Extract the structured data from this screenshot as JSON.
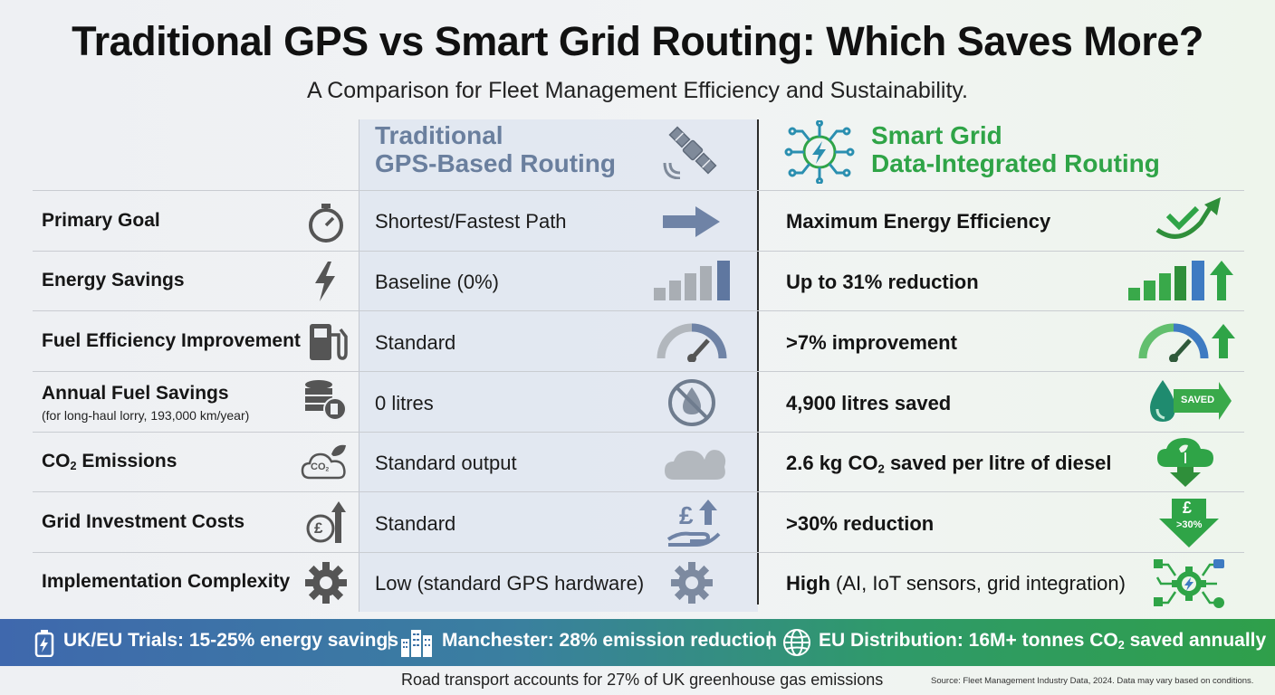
{
  "header": {
    "title": "Traditional GPS vs Smart Grid Routing: Which Saves More?",
    "subtitle": "A Comparison for Fleet Management Efficiency and Sustainability."
  },
  "columns": {
    "gps": {
      "line1": "Traditional",
      "line2": "GPS-Based Routing",
      "icon": "satellite-icon"
    },
    "smart": {
      "line1": "Smart Grid",
      "line2": "Data-Integrated Routing",
      "icon": "circuit-bolt-icon"
    }
  },
  "rows": [
    {
      "label": "Primary Goal",
      "sublabel": "",
      "gps": "Shortest/Fastest Path",
      "smart": "Maximum Energy Efficiency",
      "smart_suffix": ""
    },
    {
      "label": "Energy Savings",
      "sublabel": "",
      "gps": "Baseline (0%)",
      "smart": "Up to 31% reduction",
      "smart_suffix": ""
    },
    {
      "label": "Fuel Efficiency Improvement",
      "sublabel": "",
      "gps": "Standard",
      "smart": ">7% improvement",
      "smart_suffix": ""
    },
    {
      "label": "Annual Fuel Savings",
      "sublabel": "(for long-haul lorry, 193,000 km/year)",
      "gps": "0 litres",
      "smart": "4,900 litres saved",
      "smart_suffix": ""
    },
    {
      "label": "CO",
      "label_sub": "2",
      "label_rest": " Emissions",
      "sublabel": "",
      "gps": "Standard output",
      "smart": "2.6 kg CO",
      "smart_sub": "2",
      "smart_rest": " saved per litre of diesel",
      "smart_suffix": ""
    },
    {
      "label": "Grid Investment Costs",
      "sublabel": "",
      "gps": "Standard",
      "smart": ">30% reduction",
      "smart_suffix": ""
    },
    {
      "label": "Implementation Complexity",
      "sublabel": "",
      "gps": "Low (standard GPS hardware)",
      "smart": "High",
      "smart_suffix": " (AI, IoT sensors, grid integration)"
    }
  ],
  "icons": {
    "labels": [
      "stopwatch-icon",
      "lightning-icon",
      "fuel-pump-icon",
      "coins-fuel-icon",
      "co2-cloud-icon",
      "pound-up-icon",
      "gear-icon"
    ],
    "gps": [
      "arrow-right-icon",
      "bar-chart-icon",
      "gauge-icon",
      "no-drop-icon",
      "cloud-icon",
      "pound-hand-icon",
      "gear-icon"
    ],
    "smart": [
      "check-arrow-icon",
      "bar-chart-up-icon",
      "gauge-up-icon",
      "drop-saved-icon",
      "cloud-down-icon",
      "pound-down-icon",
      "gear-network-icon"
    ],
    "saved_badge": "SAVED",
    "pound_symbol": "£",
    "down_badge": ">30%",
    "co2_text": "CO",
    "co2_sub": "2"
  },
  "colors": {
    "gps": "#6a7f9e",
    "smart": "#2fa447",
    "gps_icon": "#8d97a5"
  },
  "banner": {
    "item1": "UK/EU Trials: 15-25% energy savings",
    "item2": "Manchester: 28% emission reduction",
    "item3_pre": "EU Distribution: 16M+ tonnes CO",
    "item3_sub": "2",
    "item3_post": " saved annually",
    "separator": "|"
  },
  "footer": {
    "main": "Road transport accounts for 27% of UK greenhouse gas emissions",
    "source": "Source: Fleet Management Industry Data, 2024. Data may vary based on conditions."
  }
}
